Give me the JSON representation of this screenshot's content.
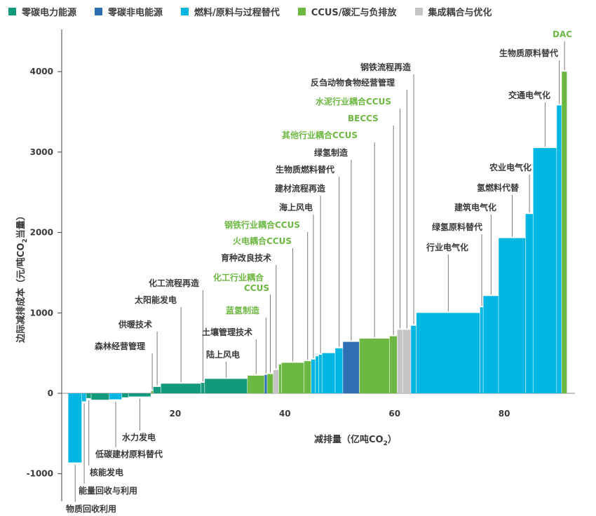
{
  "legend": [
    {
      "label": "零碳电力能源",
      "color": "#139a7c"
    },
    {
      "label": "零碳非电能源",
      "color": "#2e6fb3"
    },
    {
      "label": "燃料/原料与过程替代",
      "color": "#00b6e2"
    },
    {
      "label": "CCUS/碳汇与负排放",
      "color": "#6db842"
    },
    {
      "label": "集成耦合与优化",
      "color": "#c4c4c4"
    }
  ],
  "colors": {
    "green": "#6db842",
    "gray_text": "#3a3a3a",
    "leader": "#6b6b6b",
    "axis": "#404040",
    "zero_line": "#888888",
    "teal": "#139a7c",
    "dark_blue": "#2e6fb3",
    "cyan": "#00b6e2",
    "gray_bar": "#c4c4c4"
  },
  "chart_data": {
    "type": "bar",
    "variant": "marginal-abatement-cost-curve",
    "xlabel": "减排量（亿吨CO",
    "xlabel_sub": "2",
    "xlabel_end": "）",
    "ylabel": "边际减排成本（元/吨CO",
    "ylabel_sub": "2",
    "ylabel_end": "当量）",
    "xlim": [
      0,
      93
    ],
    "ylim": [
      -1200,
      4400
    ],
    "xticks": [
      {
        "v": 20,
        "label": "20"
      },
      {
        "v": 40,
        "label": "40"
      },
      {
        "v": 60,
        "label": "60"
      },
      {
        "v": 80,
        "label": "80"
      }
    ],
    "yticks": [
      {
        "v": -1000,
        "label": "-1000"
      },
      {
        "v": 0,
        "label": "0"
      },
      {
        "v": 1000,
        "label": "1000"
      },
      {
        "v": 2000,
        "label": "2000"
      },
      {
        "v": 3000,
        "label": "3000"
      },
      {
        "v": 4000,
        "label": "4000"
      }
    ],
    "legend_position": "top",
    "grid": false,
    "bars": [
      {
        "label": "物质回收利用",
        "x0": 0.5,
        "x1": 3.0,
        "cost": -860,
        "cat": "cyan",
        "label_color": "gray"
      },
      {
        "label": "能量回收与利用",
        "x0": 3.0,
        "x1": 3.8,
        "cost": -100,
        "cat": "cyan",
        "label_color": "gray"
      },
      {
        "label": "核能发电",
        "x0": 3.8,
        "x1": 4.7,
        "cost": -60,
        "cat": "teal",
        "label_color": "gray"
      },
      {
        "label": "",
        "x0": 4.7,
        "x1": 8.0,
        "cost": -80,
        "cat": "teal",
        "label_color": "gray"
      },
      {
        "label": "低碳建材原料替代",
        "x0": 8.0,
        "x1": 10.3,
        "cost": -75,
        "cat": "cyan",
        "label_color": "gray"
      },
      {
        "label": "",
        "x0": 10.3,
        "x1": 11.5,
        "cost": -50,
        "cat": "teal",
        "label_color": "gray"
      },
      {
        "label": "水力发电",
        "x0": 11.5,
        "x1": 15.6,
        "cost": -40,
        "cat": "teal",
        "label_color": "gray"
      },
      {
        "label": "森林经营管理",
        "x0": 15.6,
        "x1": 16.0,
        "cost": 30,
        "cat": "green",
        "label_color": "gray"
      },
      {
        "label": "供暖技术",
        "x0": 16.0,
        "x1": 17.4,
        "cost": 80,
        "cat": "teal",
        "label_color": "gray"
      },
      {
        "label": "太阳能发电",
        "x0": 17.4,
        "x1": 24.7,
        "cost": 120,
        "cat": "teal",
        "label_color": "gray"
      },
      {
        "label": "化工流程再造",
        "x0": 24.7,
        "x1": 25.4,
        "cost": 130,
        "cat": "teal",
        "label_color": "gray"
      },
      {
        "label": "陆上风电",
        "x0": 25.4,
        "x1": 33.2,
        "cost": 180,
        "cat": "teal",
        "label_color": "gray"
      },
      {
        "label": "土壤管理技术",
        "x0": 33.2,
        "x1": 36.3,
        "cost": 220,
        "cat": "green",
        "label_color": "gray"
      },
      {
        "label": "蓝氢制造",
        "x0": 36.3,
        "x1": 36.8,
        "cost": 230,
        "cat": "dark_blue",
        "label_color": "green"
      },
      {
        "label": "化工行业耦合CCUS",
        "x0": 36.8,
        "x1": 37.9,
        "cost": 240,
        "cat": "green",
        "label_color": "green"
      },
      {
        "label": "育种改良技术",
        "x0": 37.9,
        "x1": 38.9,
        "cost": 290,
        "cat": "gray_bar",
        "label_color": "gray"
      },
      {
        "label": "",
        "x0": 38.9,
        "x1": 39.4,
        "cost": 360,
        "cat": "green",
        "label_color": "gray"
      },
      {
        "label": "火电耦合CCUS",
        "x0": 39.4,
        "x1": 43.5,
        "cost": 380,
        "cat": "green",
        "label_color": "green"
      },
      {
        "label": "钢铁行业耦合CCUS",
        "x0": 43.5,
        "x1": 44.8,
        "cost": 400,
        "cat": "green",
        "label_color": "green"
      },
      {
        "label": "海上风电",
        "x0": 44.8,
        "x1": 45.6,
        "cost": 420,
        "cat": "cyan",
        "label_color": "gray"
      },
      {
        "label": "",
        "x0": 45.6,
        "x1": 46.2,
        "cost": 460,
        "cat": "cyan",
        "label_color": "gray"
      },
      {
        "label": "建材流程再造",
        "x0": 46.2,
        "x1": 46.8,
        "cost": 480,
        "cat": "cyan",
        "label_color": "gray"
      },
      {
        "label": "",
        "x0": 46.8,
        "x1": 49.2,
        "cost": 500,
        "cat": "cyan",
        "label_color": "gray"
      },
      {
        "label": "生物质燃料替代",
        "x0": 49.2,
        "x1": 50.6,
        "cost": 560,
        "cat": "cyan",
        "label_color": "gray"
      },
      {
        "label": "绿氢制造",
        "x0": 50.6,
        "x1": 53.6,
        "cost": 640,
        "cat": "dark_blue",
        "label_color": "gray"
      },
      {
        "label": "其他行业耦合CCUS",
        "x0": 53.6,
        "x1": 59.1,
        "cost": 680,
        "cat": "green",
        "label_color": "green"
      },
      {
        "label": "BECCS",
        "x0": 59.1,
        "x1": 60.5,
        "cost": 710,
        "cat": "green",
        "label_color": "green"
      },
      {
        "label": "水泥行业耦合CCUS",
        "x0": 60.5,
        "x1": 61.5,
        "cost": 790,
        "cat": "gray_bar",
        "label_color": "green"
      },
      {
        "label": "反刍动物食物经营管理",
        "x0": 61.5,
        "x1": 63.0,
        "cost": 790,
        "cat": "gray_bar",
        "label_color": "gray"
      },
      {
        "label": "钢铁流程再造",
        "x0": 63.0,
        "x1": 64.0,
        "cost": 840,
        "cat": "cyan",
        "label_color": "gray"
      },
      {
        "label": "行业电气化",
        "x0": 64.0,
        "x1": 75.6,
        "cost": 1000,
        "cat": "cyan",
        "label_color": "gray"
      },
      {
        "label": "绿氢原料替代",
        "x0": 75.6,
        "x1": 76.2,
        "cost": 1070,
        "cat": "cyan",
        "label_color": "gray"
      },
      {
        "label": "建筑电气化",
        "x0": 76.2,
        "x1": 79.0,
        "cost": 1210,
        "cat": "cyan",
        "label_color": "gray"
      },
      {
        "label": "氢燃料代替",
        "x0": 79.0,
        "x1": 83.9,
        "cost": 1930,
        "cat": "cyan",
        "label_color": "gray"
      },
      {
        "label": "农业电气化",
        "x0": 83.9,
        "x1": 85.3,
        "cost": 2230,
        "cat": "cyan",
        "label_color": "gray"
      },
      {
        "label": "交通电气化",
        "x0": 85.3,
        "x1": 89.6,
        "cost": 3050,
        "cat": "cyan",
        "label_color": "gray"
      },
      {
        "label": "生物质原料替代",
        "x0": 89.6,
        "x1": 90.5,
        "cost": 3580,
        "cat": "cyan",
        "label_color": "gray"
      },
      {
        "label": "DAC",
        "x0": 90.5,
        "x1": 91.5,
        "cost": 4000,
        "cat": "green",
        "label_color": "green"
      }
    ]
  }
}
